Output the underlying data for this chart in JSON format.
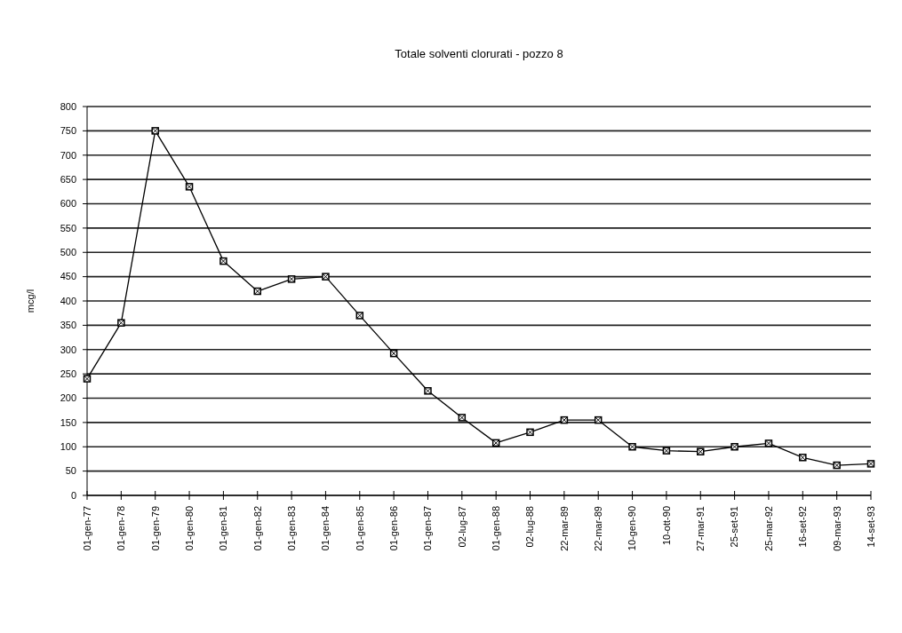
{
  "chart_data": {
    "type": "line",
    "title": "Totale solventi clorurati - pozzo 8",
    "ylabel": "mcg/l",
    "categories": [
      "01-gen-77",
      "01-gen-78",
      "01-gen-79",
      "01-gen-80",
      "01-gen-81",
      "01-gen-82",
      "01-gen-83",
      "01-gen-84",
      "01-gen-85",
      "01-gen-86",
      "01-gen-87",
      "02-lug-87",
      "01-gen-88",
      "02-lug-88",
      "22-mar-89",
      "22-mar-89",
      "10-gen-90",
      "10-ott-90",
      "27-mar-91",
      "25-set-91",
      "25-mar-92",
      "16-set-92",
      "09-mar-93",
      "14-set-93"
    ],
    "series": [
      {
        "color": "#000000",
        "values": [
          240,
          355,
          750,
          635,
          482,
          420,
          445,
          450,
          370,
          292,
          215,
          160,
          108,
          130,
          155,
          155,
          100,
          92,
          90,
          100,
          107,
          78,
          62,
          65
        ]
      }
    ],
    "ylim": [
      0,
      800
    ],
    "yticks": [
      0,
      50,
      100,
      150,
      200,
      250,
      300,
      350,
      400,
      450,
      500,
      550,
      600,
      650,
      700,
      750,
      800
    ],
    "grid": "y",
    "marker": "square",
    "line_style": "solid"
  }
}
